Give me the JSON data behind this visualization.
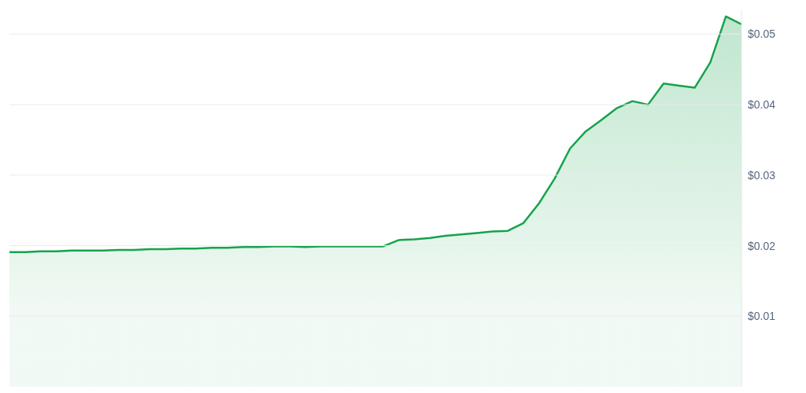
{
  "chart_data": {
    "type": "area",
    "categories": [
      null,
      null,
      null,
      null,
      null,
      null,
      null,
      null,
      null,
      null,
      null,
      null,
      null,
      null,
      null,
      null,
      null,
      null,
      null,
      null,
      null,
      null,
      null,
      null,
      null,
      null,
      null,
      null,
      null,
      null,
      null,
      null,
      null,
      null,
      null,
      null,
      null,
      null,
      null,
      null,
      null,
      null,
      null,
      null,
      null,
      null,
      null,
      null
    ],
    "series": [
      {
        "color": "#16a34a",
        "values": [
          0.0191,
          0.0191,
          0.0192,
          0.0192,
          0.0193,
          0.0193,
          0.0193,
          0.0194,
          0.0194,
          0.0195,
          0.0195,
          0.0196,
          0.0196,
          0.0197,
          0.0197,
          0.0198,
          0.0198,
          0.0199,
          0.0199,
          0.0198,
          0.0199,
          0.0199,
          0.0199,
          0.0199,
          0.0199,
          0.0208,
          0.0209,
          0.0211,
          0.0214,
          0.0216,
          0.0218,
          0.022,
          0.0221,
          0.0232,
          0.026,
          0.0295,
          0.0338,
          0.0362,
          0.0378,
          0.0395,
          0.0405,
          0.04,
          0.043,
          0.0427,
          0.0424,
          0.046,
          0.0525,
          0.0514
        ]
      }
    ],
    "ylim": [
      0,
      0.0535
    ],
    "yticks": [
      {
        "value": 0.01,
        "label": "$0.01"
      },
      {
        "value": 0.02,
        "label": "$0.02"
      },
      {
        "value": 0.03,
        "label": "$0.03"
      },
      {
        "value": 0.04,
        "label": "$0.04"
      },
      {
        "value": 0.05,
        "label": "$0.05"
      }
    ],
    "grid": "y",
    "tick_labels": "y"
  }
}
